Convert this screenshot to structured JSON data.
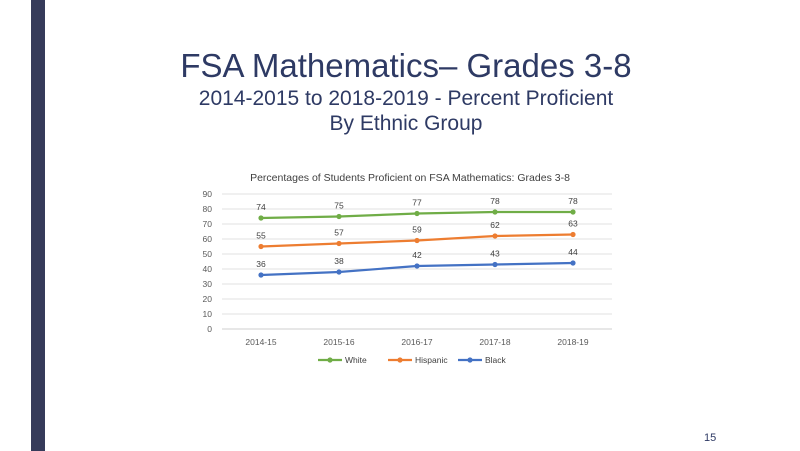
{
  "slide": {
    "title": "FSA Mathematics– Grades 3-8",
    "subtitle": "2014-2015 to 2018-2019 - Percent Proficient",
    "subtitle2": "By Ethnic Group",
    "page_number": "15",
    "accent_color": "#363b5a",
    "title_color": "#2e3a64"
  },
  "chart_data": {
    "type": "line",
    "title": "Percentages of Students Proficient on FSA Mathematics: Grades 3-8",
    "xlabel": "",
    "ylabel": "",
    "categories": [
      "2014-15",
      "2015-16",
      "2016-17",
      "2017-18",
      "2018-19"
    ],
    "ylim": [
      0,
      90
    ],
    "yticks": [
      0,
      10,
      20,
      30,
      40,
      50,
      60,
      70,
      80,
      90
    ],
    "grid": true,
    "legend_position": "bottom",
    "series": [
      {
        "name": "White",
        "color": "#70ad47",
        "values": [
          74,
          75,
          77,
          78,
          78
        ]
      },
      {
        "name": "Hispanic",
        "color": "#ed7d31",
        "values": [
          55,
          57,
          59,
          62,
          63
        ]
      },
      {
        "name": "Black",
        "color": "#4472c4",
        "values": [
          36,
          38,
          42,
          43,
          44
        ]
      }
    ]
  }
}
